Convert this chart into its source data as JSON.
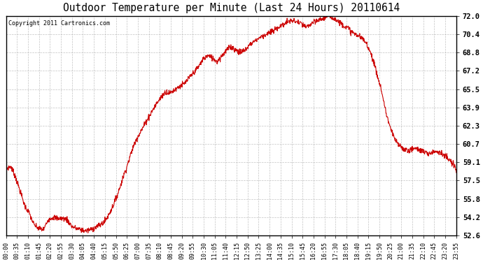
{
  "title": "Outdoor Temperature per Minute (Last 24 Hours) 20110614",
  "copyright": "Copyright 2011 Cartronics.com",
  "line_color": "#cc0000",
  "background_color": "#ffffff",
  "plot_bg_color": "#ffffff",
  "grid_color": "#aaaaaa",
  "ylim": [
    52.6,
    72.0
  ],
  "yticks": [
    52.6,
    54.2,
    55.8,
    57.5,
    59.1,
    60.7,
    62.3,
    63.9,
    65.5,
    67.2,
    68.8,
    70.4,
    72.0
  ],
  "xtick_labels": [
    "00:00",
    "00:35",
    "01:10",
    "01:45",
    "02:20",
    "02:55",
    "03:30",
    "04:05",
    "04:40",
    "05:15",
    "05:50",
    "06:25",
    "07:00",
    "07:35",
    "08:10",
    "08:45",
    "09:20",
    "09:55",
    "10:30",
    "11:05",
    "11:40",
    "12:15",
    "12:50",
    "13:25",
    "14:00",
    "14:35",
    "15:10",
    "15:45",
    "16:20",
    "16:55",
    "17:30",
    "18:05",
    "18:40",
    "19:15",
    "19:50",
    "20:25",
    "21:00",
    "21:35",
    "22:10",
    "22:45",
    "23:20",
    "23:55"
  ],
  "keypoints_x": [
    0,
    15,
    30,
    45,
    60,
    75,
    90,
    105,
    120,
    135,
    150,
    165,
    180,
    195,
    210,
    225,
    240,
    255,
    270,
    285,
    300,
    315,
    330,
    345,
    360,
    375,
    390,
    405,
    420,
    435,
    450,
    465,
    480,
    495,
    510,
    525,
    540,
    555,
    570,
    585,
    600,
    615,
    630,
    645,
    660,
    675,
    690,
    705,
    720,
    735,
    750,
    765,
    780,
    795,
    810,
    825,
    840,
    855,
    870,
    885,
    900,
    915,
    930,
    945,
    960,
    975,
    990,
    1005,
    1020,
    1035,
    1050,
    1065,
    1080,
    1095,
    1110,
    1125,
    1140,
    1155,
    1170,
    1185,
    1200,
    1215,
    1230,
    1245,
    1260,
    1275,
    1290,
    1305,
    1320,
    1335,
    1350,
    1365,
    1380,
    1395,
    1410,
    1425,
    1440
  ],
  "keypoints_y": [
    58.5,
    58.7,
    57.8,
    56.5,
    55.2,
    54.5,
    53.5,
    53.2,
    53.1,
    54.0,
    54.2,
    54.1,
    54.1,
    54.0,
    53.4,
    53.2,
    53.1,
    53.0,
    53.1,
    53.3,
    53.5,
    53.8,
    54.5,
    55.4,
    56.5,
    57.8,
    59.0,
    60.3,
    61.3,
    62.0,
    62.8,
    63.5,
    64.2,
    64.8,
    65.3,
    65.2,
    65.5,
    65.8,
    66.0,
    66.5,
    67.0,
    67.5,
    68.2,
    68.5,
    68.3,
    68.0,
    68.5,
    69.0,
    69.3,
    69.0,
    68.8,
    69.0,
    69.5,
    69.8,
    70.1,
    70.3,
    70.5,
    70.7,
    71.0,
    71.2,
    71.5,
    71.6,
    71.5,
    71.3,
    71.0,
    71.3,
    71.5,
    71.7,
    71.9,
    72.0,
    71.8,
    71.5,
    71.2,
    70.9,
    70.5,
    70.3,
    70.0,
    69.5,
    68.5,
    67.0,
    65.5,
    63.5,
    62.0,
    61.0,
    60.5,
    60.2,
    60.1,
    60.3,
    60.2,
    60.0,
    59.8,
    60.0,
    60.1,
    59.8,
    59.5,
    59.0,
    58.5
  ]
}
